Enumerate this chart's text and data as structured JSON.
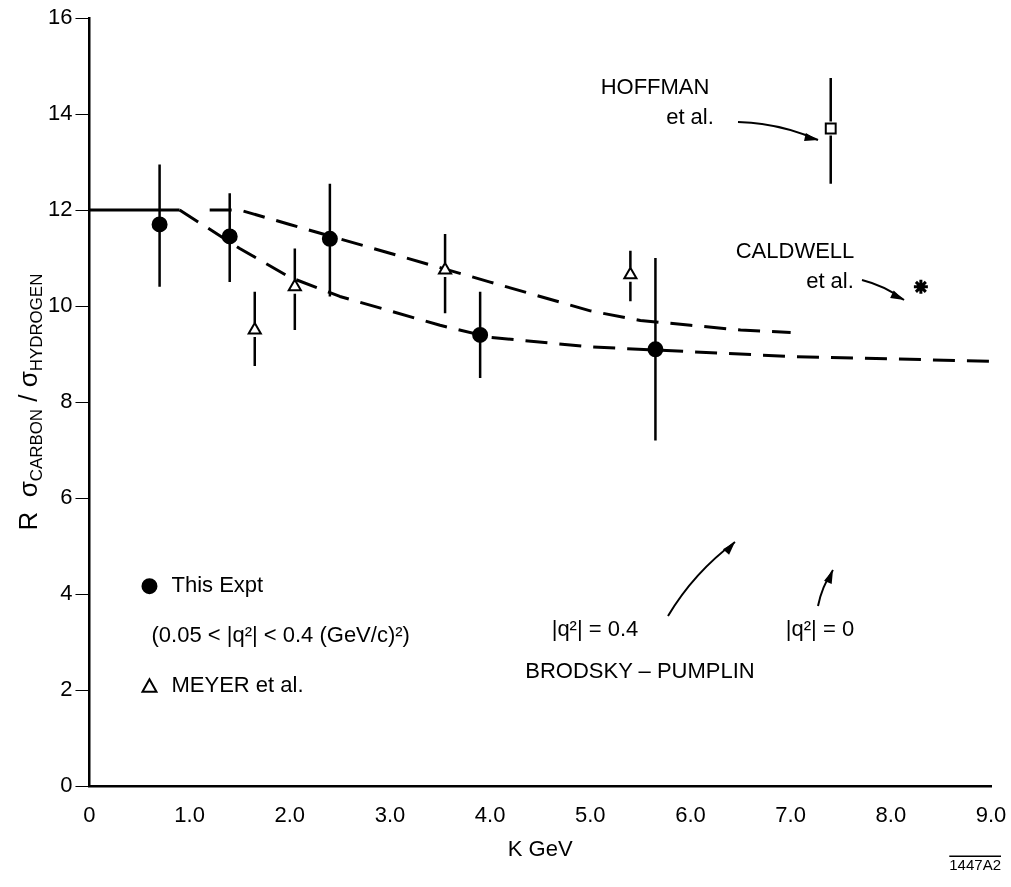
{
  "chart_data": {
    "type": "scatter",
    "xlabel": "K GeV",
    "ylabel": "R  σ$_{CARBON}$ / σ$_{HYDROGEN}$",
    "xlim": [
      0,
      9
    ],
    "xticks": [
      {
        "value": 0,
        "label": "0"
      },
      {
        "value": 1,
        "label": "1.0"
      },
      {
        "value": 2,
        "label": "2.0"
      },
      {
        "value": 3,
        "label": "3.0"
      },
      {
        "value": 4,
        "label": "4.0"
      },
      {
        "value": 5,
        "label": "5.0"
      },
      {
        "value": 6,
        "label": "6.0"
      },
      {
        "value": 7,
        "label": "7.0"
      },
      {
        "value": 8,
        "label": "8.0"
      },
      {
        "value": 9,
        "label": "9.0"
      }
    ],
    "ylim": [
      0,
      16
    ],
    "yticks": [
      0,
      2,
      4,
      6,
      8,
      10,
      12,
      14,
      16
    ],
    "grid": false,
    "legend": "bottom left",
    "series": [
      {
        "name": "This Expt",
        "type": "scatter",
        "marker": "circle",
        "color": "#000000",
        "x": [
          0.7,
          1.4,
          2.4,
          3.9,
          5.65
        ],
        "values": [
          11.7,
          11.45,
          11.4,
          9.4,
          9.1
        ],
        "errors": [
          [
            10.4,
            12.95
          ],
          [
            10.5,
            12.35
          ],
          [
            10.2,
            12.55
          ],
          [
            8.5,
            10.3
          ],
          [
            7.2,
            11.0
          ]
        ]
      },
      {
        "name": "MEYER et al.",
        "type": "scatter",
        "marker": "triangle",
        "color": "#000000",
        "x": [
          1.65,
          2.05,
          3.55,
          5.4
        ],
        "values": [
          9.5,
          10.4,
          10.75,
          10.65
        ],
        "errors": [
          [
            8.75,
            10.3
          ],
          [
            9.5,
            11.2
          ],
          [
            9.85,
            11.5
          ],
          [
            10.1,
            11.15
          ]
        ]
      },
      {
        "type": "scatter",
        "marker": "square",
        "color": "#000000",
        "x": [
          7.4
        ],
        "values": [
          13.7
        ],
        "errors": [
          [
            12.55,
            14.75
          ]
        ]
      },
      {
        "type": "scatter",
        "marker": "cross",
        "color": "#000000",
        "x": [
          8.3
        ],
        "values": [
          10.4
        ]
      },
      {
        "type": "line",
        "line_style": "solid",
        "marker": "none",
        "color": "#000000",
        "x": [
          0,
          0.9
        ],
        "values": [
          12,
          12
        ]
      },
      {
        "type": "line",
        "line_style": "dashed",
        "marker": "none",
        "color": "#000000",
        "x": [
          0.9,
          1.5,
          2,
          2.5,
          3,
          3.5,
          4,
          5,
          6,
          7,
          8,
          9
        ],
        "values": [
          12,
          11.2,
          10.6,
          10.2,
          9.9,
          9.6,
          9.35,
          9.15,
          9.05,
          8.95,
          8.9,
          8.85
        ]
      },
      {
        "type": "line",
        "line_style": "dashed",
        "marker": "none",
        "color": "#000000",
        "x": [
          1.2,
          1.5,
          2,
          2.5,
          3,
          3.5,
          4,
          4.5,
          5,
          5.5,
          6,
          6.5,
          7
        ],
        "values": [
          12,
          12,
          11.7,
          11.4,
          11.1,
          10.8,
          10.5,
          10.2,
          9.9,
          9.7,
          9.6,
          9.5,
          9.45
        ]
      }
    ],
    "annotations": [
      "HOFFMAN\net al.",
      "CALDWELL\net al.",
      "|q²| = 0.4",
      "|q²| = 0",
      "BRODSKY – PUMPLIN",
      "(0.05 < |q²| < 0.4 (GeV/c)²)",
      "1447A2"
    ]
  }
}
